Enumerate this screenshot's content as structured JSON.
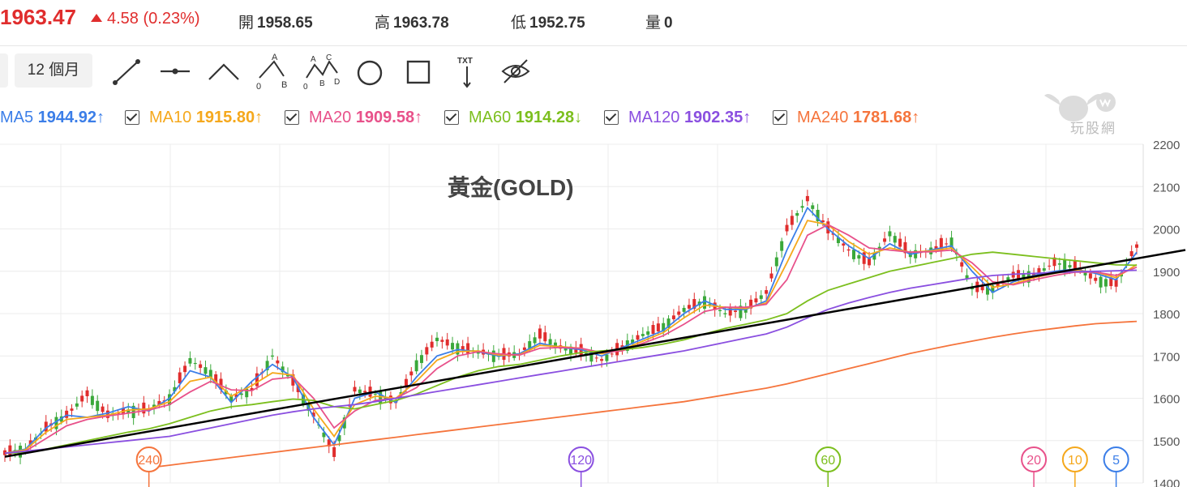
{
  "quote": {
    "price": "1963.47",
    "change": "4.58 (0.23%)",
    "open_label": "開",
    "open_value": "1958.65",
    "high_label": "高",
    "high_value": "1963.78",
    "low_label": "低",
    "low_value": "1952.75",
    "volume_label": "量",
    "volume_value": "0"
  },
  "toolbar": {
    "period_label": "12 個月",
    "tools": [
      "trend-line-icon",
      "horizontal-line-icon",
      "angle-line-icon",
      "abc-pattern-icon",
      "abcd-pattern-icon",
      "circle-icon",
      "rectangle-icon",
      "text-icon",
      "hide-icon"
    ],
    "tool_glyphs": {
      "abc": [
        "0",
        "A",
        "B"
      ],
      "abcd": [
        "0",
        "A",
        "B",
        "C",
        "D"
      ],
      "text": "TXT"
    }
  },
  "legend": [
    {
      "name": "MA5",
      "value": "1944.92",
      "arrow": "↑",
      "color": "#3b7ee8"
    },
    {
      "name": "MA10",
      "value": "1915.80",
      "arrow": "↑",
      "color": "#f5a81c"
    },
    {
      "name": "MA20",
      "value": "1909.58",
      "arrow": "↑",
      "color": "#e8518a"
    },
    {
      "name": "MA60",
      "value": "1914.28",
      "arrow": "↓",
      "color": "#7cbf1e"
    },
    {
      "name": "MA120",
      "value": "1902.35",
      "arrow": "↑",
      "color": "#8a4fe0"
    },
    {
      "name": "MA240",
      "value": "1781.68",
      "arrow": "↑",
      "color": "#f5743c"
    }
  ],
  "watermark": {
    "text": "玩股網"
  },
  "colors": {
    "up": "#e02d2d",
    "down": "#3aa83a",
    "trendline": "#000000",
    "grid": "#ececec",
    "axis_text": "#555555"
  },
  "chart_data": {
    "type": "candlestick",
    "title": "黃金(GOLD)",
    "ylim": [
      1400,
      2200
    ],
    "yticks": [
      1400,
      1500,
      1600,
      1700,
      1800,
      1900,
      2000,
      2100,
      2200
    ],
    "series": [
      {
        "name": "MA5",
        "color": "#3b7ee8",
        "values": [
          1470,
          1480,
          1530,
          1560,
          1555,
          1565,
          1580,
          1570,
          1600,
          1665,
          1650,
          1590,
          1640,
          1680,
          1650,
          1555,
          1490,
          1600,
          1615,
          1590,
          1650,
          1700,
          1715,
          1710,
          1700,
          1705,
          1730,
          1720,
          1715,
          1700,
          1720,
          1740,
          1760,
          1800,
          1830,
          1810,
          1810,
          1830,
          1950,
          2050,
          2000,
          1960,
          1930,
          1965,
          1940,
          1950,
          1960,
          1900,
          1850,
          1875,
          1890,
          1900,
          1905,
          1895,
          1880,
          1944.92
        ]
      },
      {
        "name": "MA10",
        "color": "#f5a81c",
        "values": [
          1470,
          1478,
          1520,
          1550,
          1555,
          1560,
          1572,
          1575,
          1592,
          1640,
          1650,
          1605,
          1630,
          1660,
          1655,
          1575,
          1510,
          1585,
          1605,
          1600,
          1640,
          1690,
          1710,
          1712,
          1702,
          1703,
          1725,
          1722,
          1718,
          1705,
          1715,
          1735,
          1755,
          1790,
          1820,
          1815,
          1812,
          1825,
          1920,
          2020,
          2010,
          1970,
          1940,
          1955,
          1945,
          1948,
          1955,
          1910,
          1862,
          1870,
          1885,
          1895,
          1902,
          1898,
          1885,
          1915.8
        ]
      },
      {
        "name": "MA20",
        "color": "#e8518a",
        "values": [
          1470,
          1475,
          1505,
          1535,
          1550,
          1558,
          1565,
          1572,
          1585,
          1615,
          1640,
          1620,
          1618,
          1645,
          1650,
          1600,
          1530,
          1570,
          1595,
          1600,
          1625,
          1670,
          1700,
          1710,
          1705,
          1702,
          1718,
          1720,
          1718,
          1708,
          1712,
          1730,
          1748,
          1775,
          1805,
          1815,
          1815,
          1822,
          1880,
          1985,
          2010,
          1985,
          1955,
          1950,
          1945,
          1946,
          1950,
          1920,
          1875,
          1868,
          1880,
          1890,
          1898,
          1898,
          1890,
          1909.58
        ]
      },
      {
        "name": "MA60",
        "color": "#7cbf1e",
        "values": [
          1470,
          1472,
          1480,
          1490,
          1500,
          1510,
          1520,
          1528,
          1540,
          1555,
          1570,
          1580,
          1585,
          1592,
          1598,
          1595,
          1580,
          1575,
          1585,
          1595,
          1610,
          1630,
          1650,
          1665,
          1675,
          1680,
          1690,
          1700,
          1708,
          1712,
          1715,
          1720,
          1728,
          1738,
          1752,
          1765,
          1775,
          1785,
          1800,
          1830,
          1855,
          1870,
          1885,
          1900,
          1910,
          1920,
          1930,
          1940,
          1945,
          1940,
          1935,
          1930,
          1925,
          1920,
          1915,
          1914.28
        ]
      },
      {
        "name": "MA120",
        "color": "#8a4fe0",
        "values": [
          1470,
          1475,
          1480,
          1485,
          1490,
          1495,
          1500,
          1505,
          1510,
          1520,
          1530,
          1540,
          1550,
          1560,
          1568,
          1575,
          1580,
          1585,
          1592,
          1600,
          1608,
          1616,
          1624,
          1632,
          1640,
          1648,
          1656,
          1664,
          1672,
          1680,
          1688,
          1696,
          1704,
          1712,
          1722,
          1732,
          1742,
          1752,
          1768,
          1790,
          1810,
          1825,
          1838,
          1850,
          1860,
          1868,
          1876,
          1884,
          1890,
          1893,
          1895,
          1897,
          1899,
          1900,
          1901,
          1902.35
        ]
      },
      {
        "name": "MA240",
        "color": "#f5743c",
        "values": [
          null,
          null,
          null,
          null,
          null,
          null,
          null,
          1436,
          1442,
          1448,
          1454,
          1460,
          1466,
          1472,
          1478,
          1484,
          1490,
          1496,
          1502,
          1508,
          1514,
          1520,
          1526,
          1532,
          1538,
          1544,
          1550,
          1556,
          1562,
          1568,
          1574,
          1580,
          1586,
          1592,
          1600,
          1608,
          1616,
          1624,
          1634,
          1646,
          1658,
          1670,
          1682,
          1694,
          1706,
          1716,
          1726,
          1735,
          1744,
          1752,
          1759,
          1765,
          1771,
          1776,
          1779,
          1781.68
        ]
      }
    ],
    "candles_close": [
      1470,
      1480,
      1530,
      1560,
      1610,
      1560,
      1570,
      1575,
      1600,
      1690,
      1660,
      1600,
      1620,
      1700,
      1640,
      1560,
      1470,
      1620,
      1610,
      1590,
      1680,
      1740,
      1720,
      1710,
      1700,
      1705,
      1750,
      1720,
      1710,
      1690,
      1720,
      1750,
      1770,
      1810,
      1830,
      1800,
      1810,
      1850,
      2000,
      2070,
      2000,
      1950,
      1920,
      1990,
      1940,
      1950,
      1970,
      1860,
      1860,
      1890,
      1890,
      1920,
      1910,
      1880,
      1870,
      1963.47
    ],
    "trendline": [
      {
        "x": 0,
        "y": 1462
      },
      {
        "x": 55,
        "y": 1935
      }
    ],
    "ma_markers": [
      {
        "label": "240",
        "color": "#f5743c",
        "x": 7
      },
      {
        "label": "120",
        "color": "#8a4fe0",
        "x": 28
      },
      {
        "label": "60",
        "color": "#7cbf1e",
        "x": 40
      },
      {
        "label": "20",
        "color": "#e8518a",
        "x": 50
      },
      {
        "label": "10",
        "color": "#f5a81c",
        "x": 52
      },
      {
        "label": "5",
        "color": "#3b7ee8",
        "x": 54
      }
    ]
  }
}
